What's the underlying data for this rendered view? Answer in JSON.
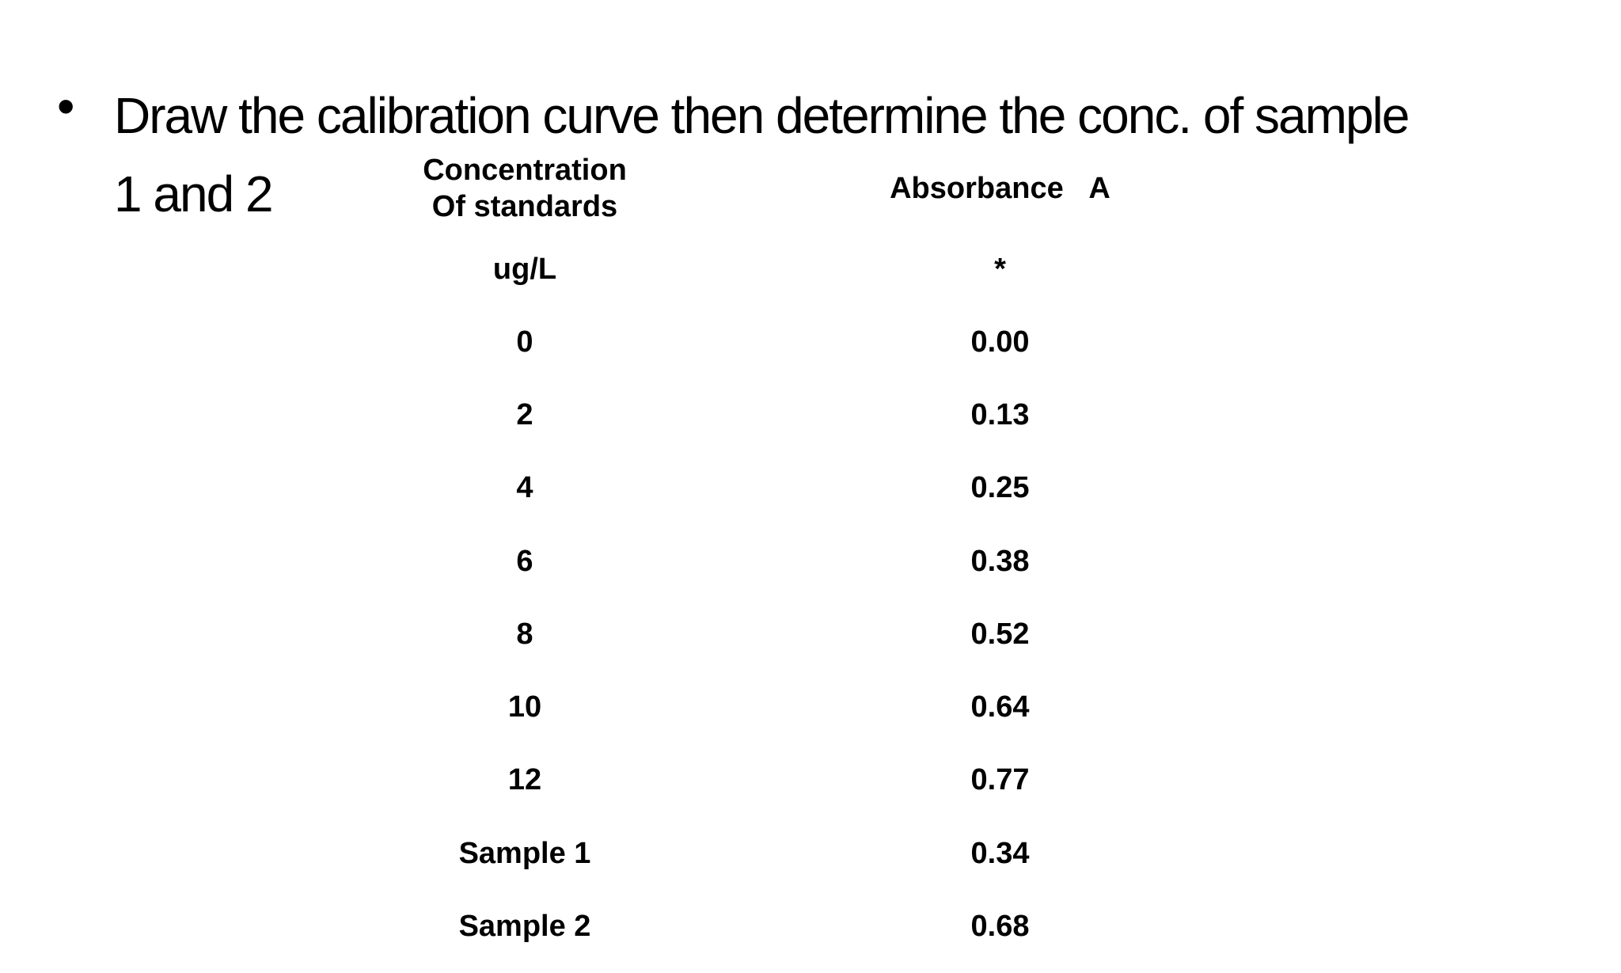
{
  "slide": {
    "background_color": "#ffffff",
    "text_color": "#000000",
    "bullet_marker": "•",
    "title_line1": "Draw the calibration curve then determine the conc. of sample",
    "title_line2": "1 and 2"
  },
  "table": {
    "header": {
      "col1_line1": "Concentration",
      "col1_line2": "Of standards",
      "col2": "Absorbance  A"
    },
    "units": {
      "col1": "ug/L",
      "col2": "*"
    },
    "rows": [
      {
        "concentration": "0",
        "absorbance": "0.00"
      },
      {
        "concentration": "2",
        "absorbance": "0.13"
      },
      {
        "concentration": "4",
        "absorbance": "0.25"
      },
      {
        "concentration": "6",
        "absorbance": "0.38"
      },
      {
        "concentration": "8",
        "absorbance": "0.52"
      },
      {
        "concentration": "10",
        "absorbance": "0.64"
      },
      {
        "concentration": "12",
        "absorbance": "0.77"
      },
      {
        "concentration": "Sample 1",
        "absorbance": "0.34"
      },
      {
        "concentration": "Sample 2",
        "absorbance": "0.68"
      }
    ]
  }
}
